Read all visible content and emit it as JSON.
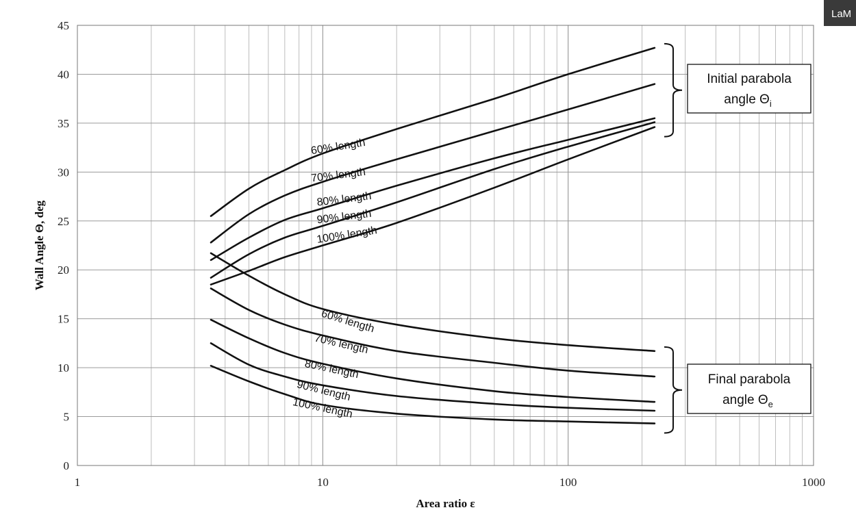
{
  "badge": {
    "text": "LaM"
  },
  "chart_data": {
    "type": "line",
    "title": "",
    "xlabel": "Area ratio ε",
    "ylabel": "Wall Angle Θ, deg",
    "xscale": "log",
    "xlim": [
      1,
      1000
    ],
    "ylim": [
      0,
      45
    ],
    "xticks": [
      "1",
      "10",
      "100",
      "1000"
    ],
    "yticks": [
      "0",
      "5",
      "10",
      "15",
      "20",
      "25",
      "30",
      "35",
      "40",
      "45"
    ],
    "grid": true,
    "series": [
      {
        "group": "initial",
        "name": "60% length",
        "x": [
          3.5,
          5,
          7,
          10,
          20,
          50,
          100,
          225
        ],
        "y": [
          25.5,
          28.3,
          30.2,
          31.9,
          34.4,
          37.5,
          40.0,
          42.7
        ]
      },
      {
        "group": "initial",
        "name": "70% length",
        "x": [
          3.5,
          5,
          7,
          10,
          20,
          50,
          100,
          225
        ],
        "y": [
          22.8,
          25.7,
          27.6,
          29.0,
          31.3,
          34.2,
          36.4,
          39.0
        ]
      },
      {
        "group": "initial",
        "name": "80% length",
        "x": [
          3.5,
          5,
          7,
          10,
          20,
          50,
          100,
          225
        ],
        "y": [
          21.0,
          23.3,
          25.1,
          26.3,
          28.6,
          31.4,
          33.3,
          35.5
        ]
      },
      {
        "group": "initial",
        "name": "90% length",
        "x": [
          3.5,
          5,
          7,
          10,
          20,
          50,
          100,
          225
        ],
        "y": [
          19.2,
          21.6,
          23.3,
          24.5,
          26.9,
          30.3,
          32.6,
          35.1
        ]
      },
      {
        "group": "initial",
        "name": "100% length",
        "x": [
          3.5,
          5,
          7,
          10,
          20,
          50,
          100,
          225
        ],
        "y": [
          18.5,
          19.9,
          21.3,
          22.5,
          24.8,
          28.4,
          31.3,
          34.6
        ]
      },
      {
        "group": "final",
        "name": "60% length",
        "x": [
          3.5,
          5,
          7,
          10,
          20,
          50,
          100,
          225
        ],
        "y": [
          21.7,
          19.4,
          17.5,
          16.0,
          14.4,
          13.0,
          12.3,
          11.7
        ]
      },
      {
        "group": "final",
        "name": "70% length",
        "x": [
          3.5,
          5,
          7,
          10,
          20,
          50,
          100,
          225
        ],
        "y": [
          18.1,
          15.9,
          14.4,
          13.3,
          11.7,
          10.5,
          9.7,
          9.1
        ]
      },
      {
        "group": "final",
        "name": "80% length",
        "x": [
          3.5,
          5,
          7,
          10,
          20,
          50,
          100,
          225
        ],
        "y": [
          14.9,
          13.0,
          11.5,
          10.4,
          8.9,
          7.6,
          7.0,
          6.5
        ]
      },
      {
        "group": "final",
        "name": "90% length",
        "x": [
          3.5,
          5,
          7,
          10,
          20,
          50,
          100,
          225
        ],
        "y": [
          12.5,
          10.3,
          9.1,
          8.2,
          7.1,
          6.3,
          5.9,
          5.6
        ]
      },
      {
        "group": "final",
        "name": "100% length",
        "x": [
          3.5,
          5,
          7,
          10,
          20,
          50,
          100,
          225
        ],
        "y": [
          10.2,
          8.6,
          7.3,
          6.2,
          5.3,
          4.7,
          4.5,
          4.3
        ]
      }
    ],
    "annotations": [
      {
        "text_line1": "Initial parabola",
        "text_line2": "angle Θ",
        "subscript": "i",
        "group": "initial"
      },
      {
        "text_line1": "Final parabola",
        "text_line2": "angle Θ",
        "subscript": "e",
        "group": "final"
      }
    ]
  }
}
